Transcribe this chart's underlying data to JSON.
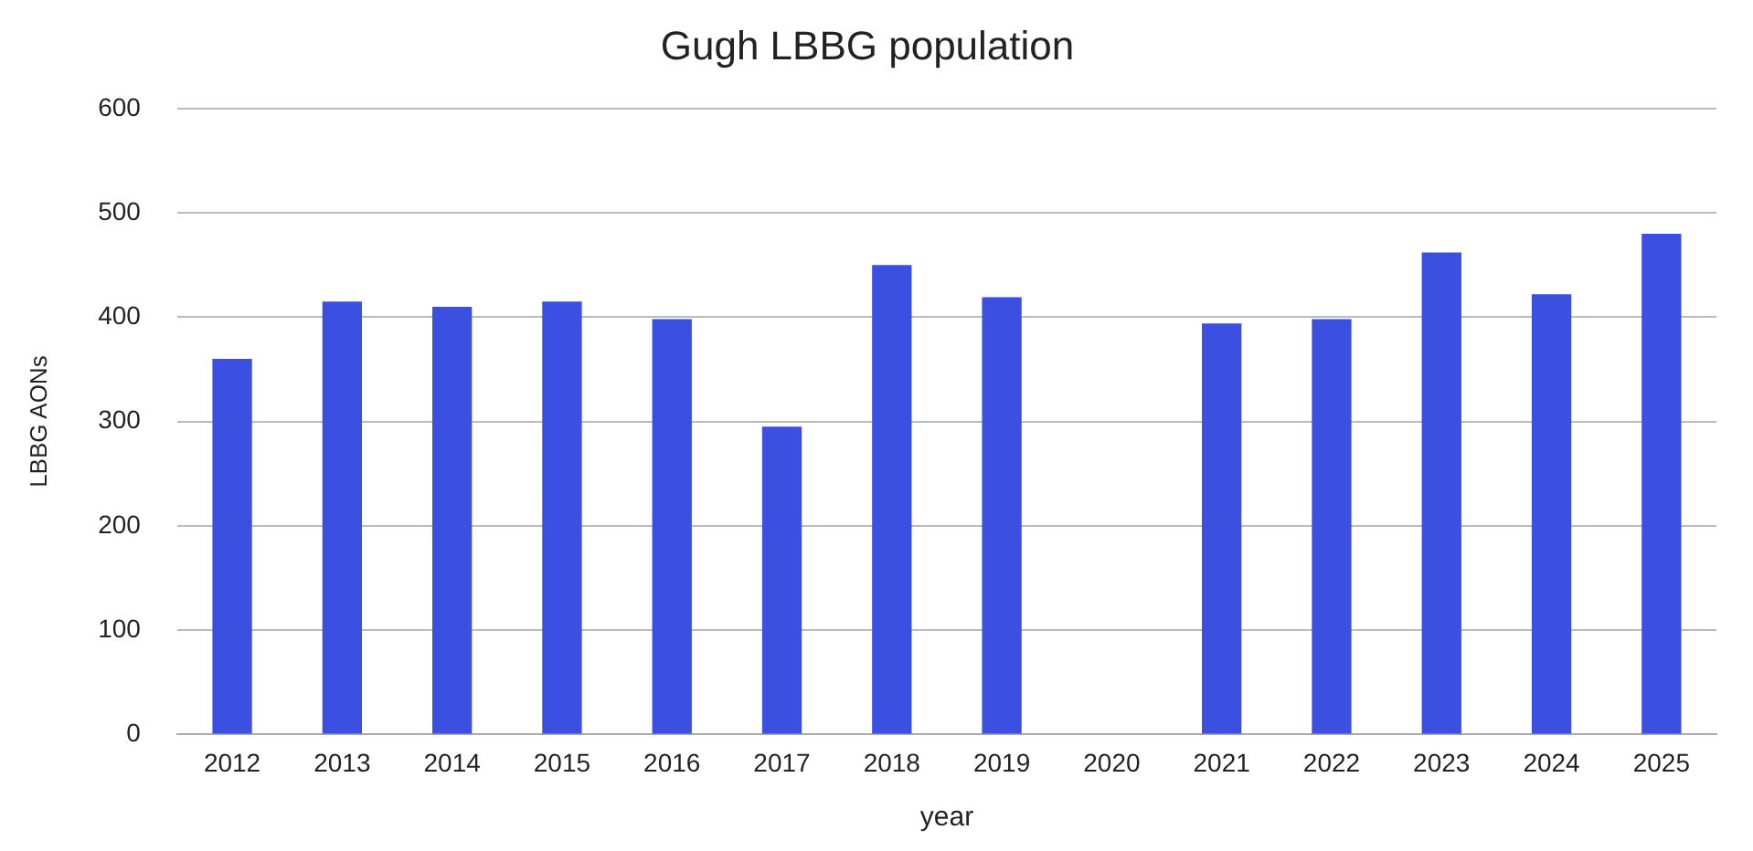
{
  "chart_data": {
    "type": "bar",
    "title": "Gugh LBBG population",
    "xlabel": "year",
    "ylabel": "LBBG AONs",
    "categories": [
      "2012",
      "2013",
      "2014",
      "2015",
      "2016",
      "2017",
      "2018",
      "2019",
      "2020",
      "2021",
      "2022",
      "2023",
      "2024",
      "2025"
    ],
    "values": [
      360,
      415,
      410,
      415,
      398,
      295,
      450,
      419,
      null,
      394,
      398,
      462,
      422,
      480
    ],
    "color": "#3b4fe0",
    "ylim": [
      0,
      600
    ],
    "yticks": [
      0,
      100,
      200,
      300,
      400,
      500,
      600
    ],
    "grid": "y",
    "legend": false
  }
}
